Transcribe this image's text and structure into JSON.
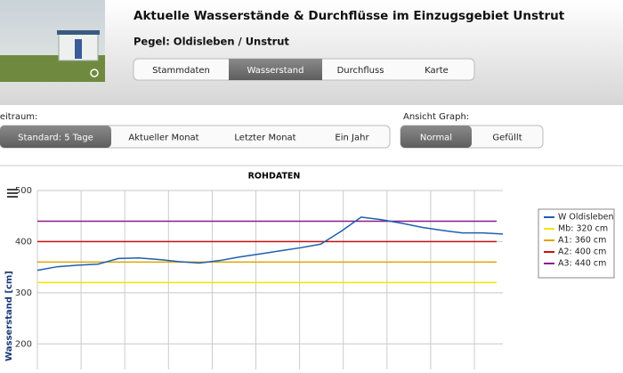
{
  "header": {
    "title": "Aktuelle Wasserstände & Durchflüsse im Einzugsgebiet Unstrut",
    "subtitle": "Pegel: Oldisleben / Unstrut"
  },
  "tabs": [
    "Stammdaten",
    "Wasserstand",
    "Durchfluss",
    "Karte"
  ],
  "period": {
    "label": "Zeitraum:",
    "options": [
      "Standard: 5 Tage",
      "Aktueller Monat",
      "Letzter Monat",
      "Ein Jahr"
    ]
  },
  "view": {
    "label": "Ansicht Graph:",
    "options": [
      "Normal",
      "Gefüllt"
    ]
  },
  "chart_data": {
    "type": "line",
    "title": "ROHDATEN",
    "y_label": "Wasserstand [cm]",
    "ylim": [
      150,
      500
    ],
    "yticks": [
      200,
      300,
      400,
      500
    ],
    "grid": true,
    "legend": "right",
    "series": [
      {
        "name": "W Oldisleben",
        "color": "#1f5fb0",
        "values": [
          344,
          351,
          354,
          356,
          367,
          368,
          365,
          361,
          358,
          363,
          370,
          376,
          382,
          388,
          395,
          420,
          448,
          443,
          436,
          428,
          422,
          417,
          417,
          415
        ]
      }
    ],
    "thresholds": [
      {
        "name": "Mb: 320 cm",
        "color": "#f2e600",
        "value": 320
      },
      {
        "name": "A1: 360 cm",
        "color": "#e0a400",
        "value": 360
      },
      {
        "name": "A2: 400 cm",
        "color": "#c81010",
        "value": 400
      },
      {
        "name": "A3: 440 cm",
        "color": "#8a1c8a",
        "value": 440
      }
    ]
  }
}
